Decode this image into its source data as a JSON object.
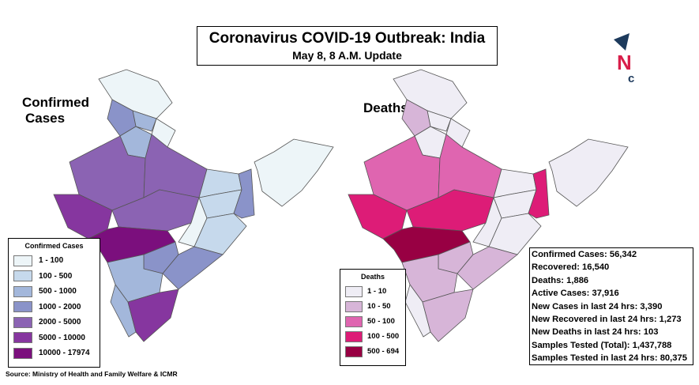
{
  "header": {
    "title": "Coronavirus COVID-19 Outbreak: India",
    "subtitle": "May 8, 8 A.M. Update"
  },
  "logo": {
    "text": "NC",
    "colors": {
      "navy": "#1d3a5c",
      "red": "#d81e4a"
    }
  },
  "confirmed_map": {
    "title_line1": "Confirmed",
    "title_line2": "Cases",
    "legend_title": "Confirmed Cases",
    "legend": [
      {
        "label": "1 - 100",
        "color": "#edf5f8"
      },
      {
        "label": "100 - 500",
        "color": "#c6d9ec"
      },
      {
        "label": "500 - 1000",
        "color": "#a3b7db"
      },
      {
        "label": "1000 - 2000",
        "color": "#8a93c9"
      },
      {
        "label": "2000 - 5000",
        "color": "#8b63b3"
      },
      {
        "label": "5000 - 10000",
        "color": "#86369f"
      },
      {
        "label": "10000 - 17974",
        "color": "#7b0f7d"
      }
    ],
    "regions": {
      "jk": 0,
      "hp": 2,
      "pb": 3,
      "uk": 0,
      "hr": 2,
      "rj": 4,
      "gj": 5,
      "up": 4,
      "mp": 4,
      "mh": 6,
      "br": 1,
      "jh": 1,
      "cg": 0,
      "od": 1,
      "wb": 3,
      "tg": 3,
      "ap": 3,
      "ka": 2,
      "kl": 2,
      "tn": 5,
      "ne": 0
    }
  },
  "deaths_map": {
    "title": "Deaths",
    "legend_title": "Deaths",
    "legend": [
      {
        "label": "1 - 10",
        "color": "#efedf5"
      },
      {
        "label": "10 - 50",
        "color": "#d7b5d8"
      },
      {
        "label": "50 - 100",
        "color": "#df65b0"
      },
      {
        "label": "100 - 500",
        "color": "#dd1c77"
      },
      {
        "label": "500 - 694",
        "color": "#980043"
      }
    ],
    "regions": {
      "jk": 0,
      "hp": 0,
      "pb": 1,
      "uk": 0,
      "hr": 0,
      "rj": 2,
      "gj": 3,
      "up": 2,
      "mp": 3,
      "mh": 4,
      "br": 0,
      "jh": 0,
      "cg": 0,
      "od": 0,
      "wb": 3,
      "tg": 1,
      "ap": 1,
      "ka": 1,
      "kl": 0,
      "tn": 1,
      "ne": 0
    }
  },
  "stats": [
    "Confirmed Cases: 56,342",
    "Recovered: 16,540",
    "Deaths: 1,886",
    "Active Cases:  37,916",
    "New Cases in last 24 hrs: 3,390",
    "New Recovered in last 24 hrs: 1,273",
    "New Deaths in last 24 hrs: 103",
    "Samples Tested (Total): 1,437,788",
    "Samples Tested in last 24 hrs: 80,375"
  ],
  "source": "Source: Ministry of Health and Family Welfare & ICMR"
}
